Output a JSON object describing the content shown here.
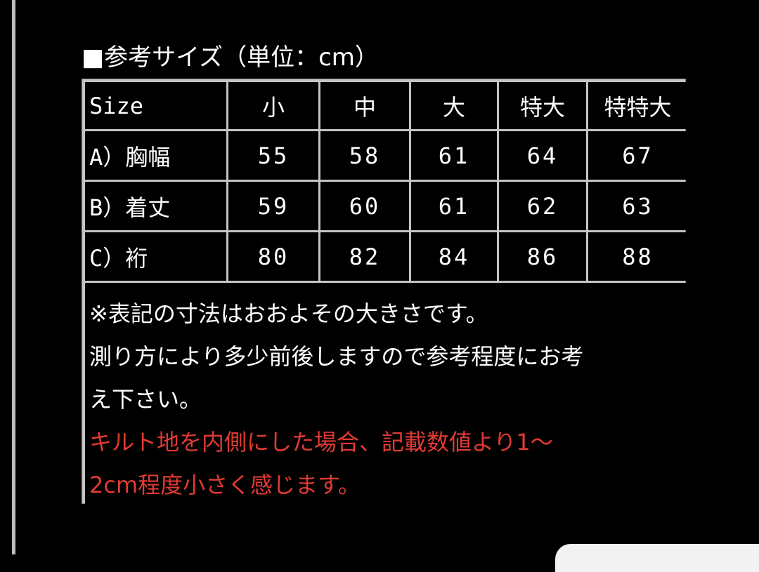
{
  "title": "■参考サイズ（単位：cm）",
  "table": {
    "headers": [
      "Size",
      "小",
      "中",
      "大",
      "特大",
      "特特大"
    ],
    "rows": [
      {
        "label": "A）胸幅",
        "values": [
          "55",
          "58",
          "61",
          "64",
          "67"
        ]
      },
      {
        "label": "B）着丈",
        "values": [
          "59",
          "60",
          "61",
          "62",
          "63"
        ]
      },
      {
        "label": "C）裄",
        "values": [
          "80",
          "82",
          "84",
          "86",
          "88"
        ]
      }
    ]
  },
  "note": {
    "line1": "※表記の寸法はおおよその大きさです。",
    "line2": "測り方により多少前後しますので参考程度にお考",
    "line3": "え下さい。",
    "warning1": "キルト地を内側にした場合、記載数値より1～",
    "warning2": "2cm程度小さく感じます。"
  },
  "colors": {
    "background": "#000000",
    "border": "#c4c4c4",
    "text": "#ffffff",
    "warning": "#e03a32"
  }
}
